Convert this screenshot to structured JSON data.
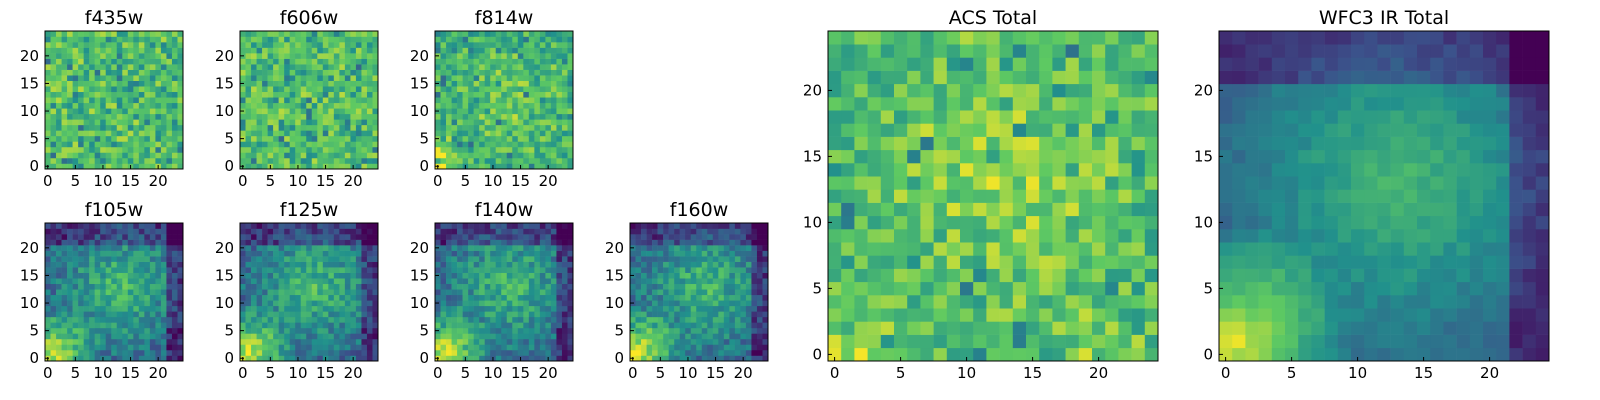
{
  "figure": {
    "colormap": "viridis",
    "colors": [
      "#440154",
      "#3b528b",
      "#21918c",
      "#5ec962",
      "#fde725"
    ]
  },
  "chart_data": [
    {
      "type": "heatmap",
      "title": "f435w",
      "grid_size": 25,
      "pattern": "noise",
      "xticks": [
        "0",
        "5",
        "10",
        "15",
        "20"
      ],
      "yticks": [
        "0",
        "5",
        "10",
        "15",
        "20"
      ]
    },
    {
      "type": "heatmap",
      "title": "f606w",
      "grid_size": 25,
      "pattern": "noise",
      "xticks": [
        "0",
        "5",
        "10",
        "15",
        "20"
      ],
      "yticks": [
        "0",
        "5",
        "10",
        "15",
        "20"
      ]
    },
    {
      "type": "heatmap",
      "title": "f814w",
      "grid_size": 25,
      "pattern": "blob",
      "xticks": [
        "0",
        "5",
        "10",
        "15",
        "20"
      ],
      "yticks": [
        "0",
        "5",
        "10",
        "15",
        "20"
      ]
    },
    {
      "type": "heatmap",
      "title": "f105w",
      "grid_size": 25,
      "pattern": "ir",
      "xticks": [
        "0",
        "5",
        "10",
        "15",
        "20"
      ],
      "yticks": [
        "0",
        "5",
        "10",
        "15",
        "20"
      ]
    },
    {
      "type": "heatmap",
      "title": "f125w",
      "grid_size": 25,
      "pattern": "ir",
      "xticks": [
        "0",
        "5",
        "10",
        "15",
        "20"
      ],
      "yticks": [
        "0",
        "5",
        "10",
        "15",
        "20"
      ]
    },
    {
      "type": "heatmap",
      "title": "f140w",
      "grid_size": 25,
      "pattern": "ir",
      "xticks": [
        "0",
        "5",
        "10",
        "15",
        "20"
      ],
      "yticks": [
        "0",
        "5",
        "10",
        "15",
        "20"
      ]
    },
    {
      "type": "heatmap",
      "title": "f160w",
      "grid_size": 25,
      "pattern": "ir",
      "xticks": [
        "0",
        "5",
        "10",
        "15",
        "20"
      ],
      "yticks": [
        "0",
        "5",
        "10",
        "15",
        "20"
      ]
    },
    {
      "type": "heatmap",
      "title": "ACS Total",
      "grid_size": 25,
      "pattern": "acs",
      "xticks": [
        "0",
        "5",
        "10",
        "15",
        "20"
      ],
      "yticks": [
        "0",
        "5",
        "10",
        "15",
        "20"
      ]
    },
    {
      "type": "heatmap",
      "title": "WFC3 IR Total",
      "grid_size": 25,
      "pattern": "wfc3",
      "xticks": [
        "0",
        "5",
        "10",
        "15",
        "20"
      ],
      "yticks": [
        "0",
        "5",
        "10",
        "15",
        "20"
      ]
    }
  ]
}
